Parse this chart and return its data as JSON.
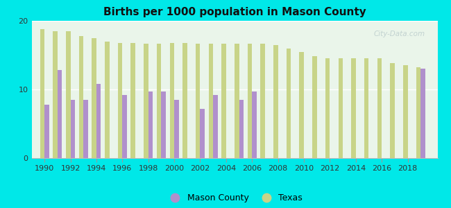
{
  "title": "Births per 1000 population in Mason County",
  "background_color": "#00e8e8",
  "years": [
    1990,
    1991,
    1992,
    1993,
    1994,
    1995,
    1996,
    1997,
    1998,
    1999,
    2000,
    2001,
    2002,
    2003,
    2004,
    2005,
    2006,
    2007,
    2008,
    2009,
    2010,
    2011,
    2012,
    2013,
    2014,
    2015,
    2016,
    2017,
    2018,
    2019
  ],
  "mason_county": [
    7.8,
    12.8,
    8.5,
    8.5,
    10.8,
    null,
    9.2,
    null,
    9.7,
    9.7,
    8.5,
    null,
    7.2,
    9.2,
    null,
    8.5,
    9.7,
    null,
    null,
    null,
    null,
    null,
    null,
    null,
    null,
    null,
    null,
    null,
    null,
    13.0
  ],
  "texas": [
    18.8,
    18.5,
    18.5,
    17.8,
    17.5,
    17.0,
    16.8,
    16.8,
    16.7,
    16.7,
    16.8,
    16.8,
    16.7,
    16.7,
    16.7,
    16.7,
    16.7,
    16.7,
    16.5,
    16.0,
    15.5,
    14.8,
    14.5,
    14.5,
    14.5,
    14.5,
    14.5,
    13.8,
    13.5,
    13.2
  ],
  "mason_color": "#b090cc",
  "texas_color": "#c8d488",
  "ylim": [
    0,
    20
  ],
  "yticks": [
    0,
    10,
    20
  ],
  "bar_width": 0.35,
  "legend_mason": "Mason County",
  "legend_texas": "Texas",
  "plot_bg_color": "#eaf5ea",
  "watermark": "City-Data.com"
}
